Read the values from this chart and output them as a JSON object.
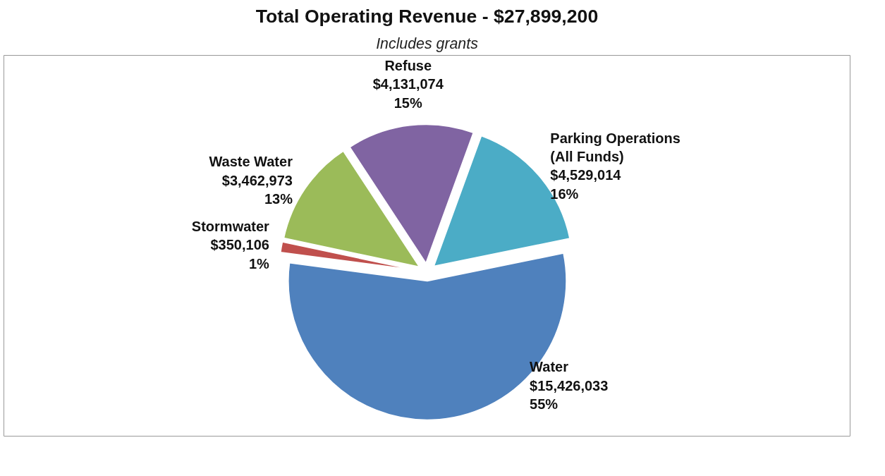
{
  "chart_data": {
    "type": "pie",
    "title": "Total Operating Revenue - $27,899,200",
    "subtitle": "Includes grants",
    "categories": [
      "Parking Operations\n(All Funds)",
      "Water",
      "Stormwater",
      "Waste Water",
      "Refuse"
    ],
    "values": [
      4529014,
      15426033,
      350106,
      3462973,
      4131074
    ],
    "colors": [
      "#4bacc6",
      "#4f81bd",
      "#c0504d",
      "#9bbb59",
      "#8064a2"
    ],
    "value_labels": [
      "$4,529,014\n16%",
      "$15,426,033\n55%",
      "$350,106\n1%",
      "$3,462,973\n13%",
      "$4,131,074\n15%"
    ]
  }
}
